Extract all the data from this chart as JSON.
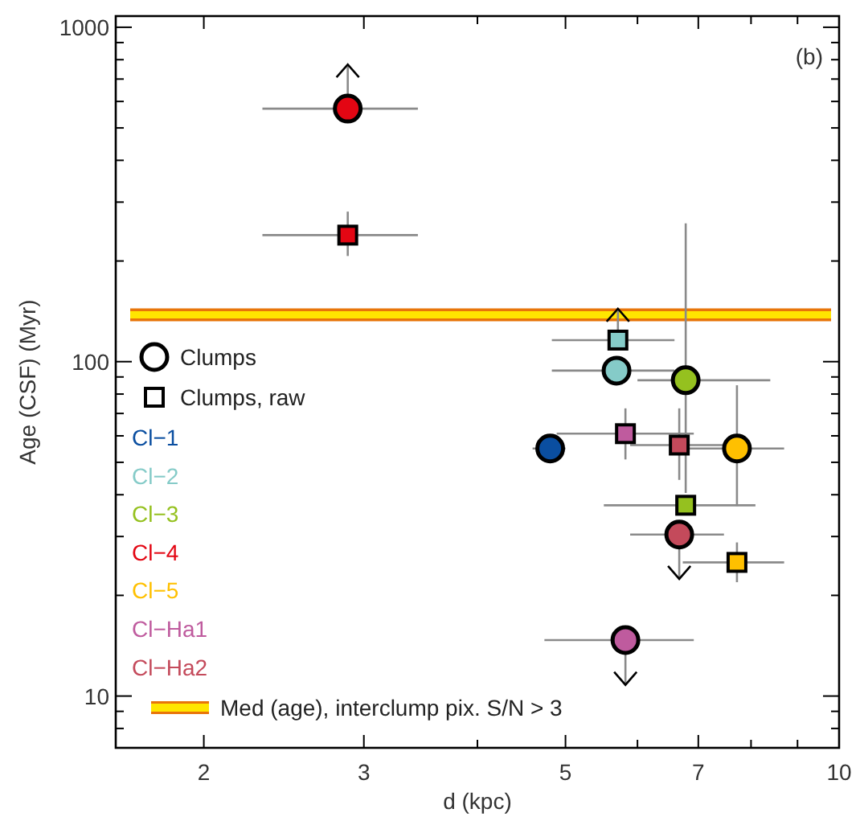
{
  "chart_data": {
    "type": "scatter",
    "xlabel": "d (kpc)",
    "ylabel": "Age (CSF) (Myr)",
    "log": "xy",
    "xlim": [
      1.6,
      10
    ],
    "ylim": [
      7,
      1080
    ],
    "xticks": [
      2,
      3,
      {
        "value": 4,
        "label": null
      },
      5,
      {
        "value": 6,
        "label": null
      },
      7,
      {
        "value": 8,
        "label": null
      },
      {
        "value": 9,
        "label": null
      },
      10
    ],
    "yticks": [
      {
        "value": 8,
        "label": null
      },
      {
        "value": 9,
        "label": null
      },
      10,
      {
        "value": 20,
        "label": null
      },
      {
        "value": 30,
        "label": null
      },
      {
        "value": 40,
        "label": null
      },
      {
        "value": 50,
        "label": null
      },
      {
        "value": 60,
        "label": null
      },
      {
        "value": 70,
        "label": null
      },
      {
        "value": 80,
        "label": null
      },
      {
        "value": 90,
        "label": null
      },
      100,
      {
        "value": 200,
        "label": null
      },
      {
        "value": 300,
        "label": null
      },
      {
        "value": 400,
        "label": null
      },
      {
        "value": 500,
        "label": null
      },
      {
        "value": 600,
        "label": null
      },
      {
        "value": 700,
        "label": null
      },
      {
        "value": 800,
        "label": null
      },
      {
        "value": 900,
        "label": null
      },
      1000
    ],
    "legend": "left",
    "series": [
      {
        "name": "Clumps",
        "color": "#ffffff",
        "marker": "circle"
      },
      {
        "name": "Clumps, raw",
        "color": "#ffffff",
        "marker": "square"
      },
      {
        "name": "Cl−1",
        "color": "#0a4ea0",
        "marker": "circle",
        "x": [
          4.81
        ],
        "values": [
          55
        ],
        "xerrors": [
          [
            4.6,
            5.0
          ]
        ]
      },
      {
        "name": "Cl−2",
        "color": "#85cbc8",
        "marker": "circle",
        "x": [
          5.69
        ],
        "values": [
          94
        ],
        "xerrors": [
          [
            4.83,
            6.59
          ]
        ]
      },
      {
        "name": "Cl−3",
        "color": "#95c11f",
        "marker": "circle",
        "x": [
          6.78
        ],
        "values": [
          88
        ],
        "errors": [
          [
            40.5,
            259
          ]
        ],
        "xerrors": [
          [
            6.0,
            8.4
          ]
        ]
      },
      {
        "name": "Cl−4",
        "color": "#e30613",
        "marker": "circle",
        "x": [
          2.88
        ],
        "values": [
          571
        ],
        "errors": [
          [
            571,
            774
          ]
        ],
        "xerrors": [
          [
            2.32,
            3.44
          ]
        ]
      },
      {
        "name": "Cl−5",
        "color": "#ffc000",
        "marker": "circle",
        "x": [
          7.72
        ],
        "values": [
          55
        ],
        "errors": [
          [
            37,
            85
          ]
        ],
        "xerrors": [
          [
            6.67,
            8.7
          ]
        ]
      },
      {
        "name": "Cl−Ha1",
        "color": "#bf5b9e",
        "marker": "circle",
        "x": [
          5.82
        ],
        "values": [
          14.7
        ],
        "errors": [
          [
            10.8,
            14.7
          ]
        ],
        "xerrors": [
          [
            4.74,
            6.92
          ]
        ]
      },
      {
        "name": "Cl−Ha2",
        "color": "#c44a5b",
        "marker": "circle",
        "x": [
          6.67
        ],
        "values": [
          30.4
        ],
        "errors": [
          [
            22.4,
            30.4
          ]
        ],
        "xerrors": [
          [
            5.89,
            7.47
          ]
        ]
      },
      {
        "color": "#85cbc8",
        "marker": "square",
        "x": [
          5.71
        ],
        "values": [
          116
        ],
        "errors": [
          [
            116,
            144
          ]
        ],
        "xerrors": [
          [
            4.83,
            6.59
          ]
        ]
      },
      {
        "color": "#95c11f",
        "marker": "square",
        "x": [
          6.78
        ],
        "values": [
          37.2
        ],
        "xerrors": [
          [
            5.51,
            8.09
          ]
        ]
      },
      {
        "color": "#e30613",
        "marker": "square",
        "x": [
          2.88
        ],
        "values": [
          239
        ],
        "errors": [
          [
            207,
            281
          ]
        ],
        "xerrors": [
          [
            2.32,
            3.44
          ]
        ]
      },
      {
        "color": "#ffc000",
        "marker": "square",
        "x": [
          7.72
        ],
        "values": [
          25.1
        ],
        "errors": [
          [
            21.9,
            28.8
          ]
        ],
        "xerrors": [
          [
            6.73,
            8.7
          ]
        ]
      },
      {
        "color": "#bf5b9e",
        "marker": "square",
        "x": [
          5.82
        ],
        "values": [
          60.9
        ],
        "errors": [
          [
            51,
            72.5
          ]
        ],
        "xerrors": [
          [
            4.89,
            6.92
          ]
        ]
      },
      {
        "color": "#c44a5b",
        "marker": "square",
        "x": [
          6.67
        ],
        "values": [
          56.3
        ],
        "errors": [
          [
            44.3,
            72.5
          ]
        ],
        "xerrors": [
          [
            5.89,
            7.45
          ]
        ]
      }
    ],
    "ref_lines": [
      {
        "axis": "y",
        "value": 138,
        "label": "Med (age), interclump pix. S/N > 3",
        "color": "#ffe600"
      }
    ],
    "annotations": [
      "(b)"
    ]
  }
}
